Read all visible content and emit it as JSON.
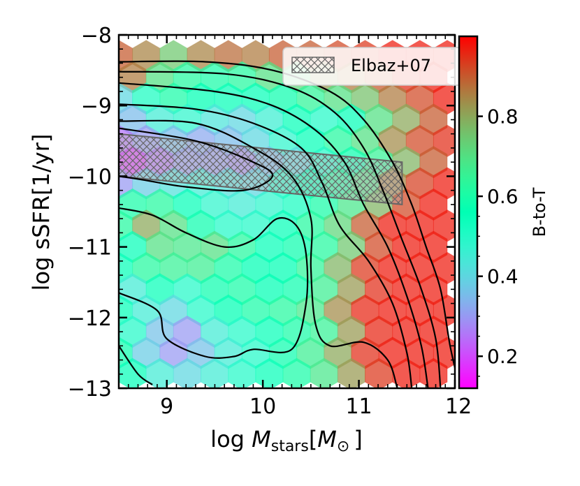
{
  "chart_data": {
    "type": "hexbin",
    "title": "",
    "xlabel": {
      "prefix": "log ",
      "sym": "M",
      "sub": "stars",
      "bracket_open": "[",
      "unit": "M",
      "unit_sub": "⊙",
      "bracket_close": "]"
    },
    "ylabel": "log sSFR[1/yr]",
    "xlim": [
      8.5,
      12
    ],
    "ylim": [
      -13,
      -8
    ],
    "xticks": [
      9,
      10,
      11,
      12
    ],
    "xtick_labels": [
      "9",
      "10",
      "11",
      "12"
    ],
    "yticks": [
      -8,
      -9,
      -10,
      -11,
      -12,
      -13
    ],
    "ytick_labels": [
      "−8",
      "−9",
      "−10",
      "−11",
      "−12",
      "−13"
    ],
    "colorbar": {
      "label": "B-to-T",
      "range": [
        0.12,
        1.0
      ],
      "ticks": [
        0.2,
        0.4,
        0.6,
        0.8
      ],
      "tick_labels": [
        "0.2",
        "0.4",
        "0.6",
        "0.8"
      ],
      "colormap": "rainbow"
    },
    "legend": {
      "location": "top-right",
      "label": "Elbaz+07",
      "style": "hatched"
    },
    "elbaz_band": {
      "x": [
        8.5,
        11.45
      ],
      "lower": [
        -10.0,
        -10.4
      ],
      "upper": [
        -9.4,
        -9.8
      ]
    },
    "hex_grid": {
      "x0": 8.5,
      "x_step": 0.285,
      "y_top": -8.3,
      "y_step": 0.3
    },
    "hex_values": [
      [
        0.9,
        0.85,
        0.75,
        0.85,
        0.88,
        0.86,
        0.9,
        0.9,
        0.92,
        0.94,
        0.97,
        0.97,
        0.97
      ],
      [
        0.86,
        0.7,
        0.62,
        0.6,
        0.62,
        0.7,
        0.72,
        0.82,
        0.86,
        0.9,
        0.95,
        0.97,
        0.97
      ],
      [
        0.4,
        0.52,
        0.6,
        0.56,
        0.55,
        0.55,
        0.58,
        0.64,
        0.7,
        0.76,
        0.86,
        0.92,
        0.97
      ],
      [
        0.35,
        0.45,
        0.48,
        0.43,
        0.4,
        0.46,
        0.55,
        0.5,
        0.55,
        0.7,
        0.8,
        0.9,
        0.95
      ],
      [
        0.25,
        0.3,
        0.35,
        0.32,
        0.35,
        0.4,
        0.48,
        0.55,
        0.62,
        0.7,
        0.84,
        0.92,
        0.95
      ],
      [
        0.18,
        0.25,
        0.3,
        0.3,
        0.28,
        0.35,
        0.4,
        0.5,
        0.58,
        0.65,
        0.78,
        0.9,
        0.95
      ],
      [
        0.3,
        0.38,
        0.42,
        0.45,
        0.42,
        0.4,
        0.5,
        0.56,
        0.62,
        0.7,
        0.85,
        0.93,
        0.97
      ],
      [
        0.6,
        0.62,
        0.55,
        0.48,
        0.45,
        0.48,
        0.52,
        0.6,
        0.68,
        0.78,
        0.92,
        0.97,
        0.97
      ],
      [
        0.62,
        0.8,
        0.7,
        0.58,
        0.5,
        0.5,
        0.55,
        0.62,
        0.72,
        0.9,
        0.97,
        0.97,
        0.97
      ],
      [
        0.55,
        0.7,
        0.68,
        0.7,
        0.62,
        0.55,
        0.58,
        0.62,
        0.75,
        0.92,
        0.97,
        0.97,
        0.97
      ],
      [
        0.55,
        0.62,
        0.65,
        0.66,
        0.6,
        0.56,
        0.56,
        0.64,
        0.78,
        0.94,
        0.97,
        0.97,
        0.97
      ],
      [
        0.45,
        0.55,
        0.5,
        0.58,
        0.6,
        0.56,
        0.58,
        0.66,
        0.82,
        0.95,
        0.97,
        0.97,
        0.97
      ],
      [
        0.55,
        0.45,
        0.4,
        0.5,
        0.56,
        0.6,
        0.62,
        0.68,
        0.84,
        0.96,
        0.97,
        0.97,
        0.97
      ],
      [
        0.5,
        0.36,
        0.3,
        0.45,
        0.5,
        0.55,
        0.6,
        0.65,
        0.82,
        0.96,
        0.97,
        0.97,
        0.97
      ],
      [
        0.58,
        0.38,
        0.3,
        0.36,
        0.45,
        0.5,
        0.58,
        0.66,
        0.8,
        0.95,
        0.97,
        0.97,
        0.97
      ],
      [
        0.55,
        0.45,
        0.4,
        0.45,
        0.5,
        0.55,
        0.6,
        0.68,
        0.82,
        0.94,
        0.97,
        0.97,
        0.97
      ]
    ],
    "hex_mask_xmax": [
      12.0,
      12.0,
      12.0,
      12.0,
      11.95,
      11.9,
      11.95,
      12.0,
      12.0,
      12.0,
      12.0,
      12.0,
      12.0,
      12.0,
      12.0,
      12.0
    ],
    "contours": [
      [
        [
          12.05,
          -13
        ],
        [
          11.95,
          -12.4
        ],
        [
          11.85,
          -11.6
        ],
        [
          11.7,
          -11.0
        ],
        [
          11.55,
          -10.4
        ],
        [
          11.35,
          -9.8
        ],
        [
          11.05,
          -9.2
        ],
        [
          10.7,
          -8.8
        ],
        [
          10.1,
          -8.5
        ],
        [
          9.4,
          -8.38
        ],
        [
          8.5,
          -8.38
        ]
      ],
      [
        [
          11.85,
          -13
        ],
        [
          11.8,
          -12.3
        ],
        [
          11.65,
          -11.6
        ],
        [
          11.45,
          -10.9
        ],
        [
          11.25,
          -10.2
        ],
        [
          11.05,
          -9.6
        ],
        [
          10.75,
          -9.1
        ],
        [
          10.3,
          -8.75
        ],
        [
          9.6,
          -8.55
        ],
        [
          8.5,
          -8.52
        ]
      ],
      [
        [
          11.72,
          -13
        ],
        [
          11.65,
          -12.4
        ],
        [
          11.5,
          -11.7
        ],
        [
          11.3,
          -11.0
        ],
        [
          11.05,
          -10.4
        ],
        [
          10.85,
          -9.8
        ],
        [
          10.55,
          -9.35
        ],
        [
          10.1,
          -9.0
        ],
        [
          9.5,
          -8.8
        ],
        [
          8.5,
          -8.68
        ]
      ],
      [
        [
          11.55,
          -13
        ],
        [
          11.5,
          -12.5
        ],
        [
          11.35,
          -11.8
        ],
        [
          11.1,
          -11.2
        ],
        [
          10.8,
          -10.7
        ],
        [
          10.62,
          -10.1
        ],
        [
          10.4,
          -9.6
        ],
        [
          9.9,
          -9.25
        ],
        [
          9.3,
          -9.05
        ],
        [
          8.5,
          -8.98
        ]
      ],
      [
        [
          11.4,
          -13
        ],
        [
          11.3,
          -12.6
        ],
        [
          11.05,
          -12.35
        ],
        [
          10.7,
          -12.4
        ],
        [
          10.55,
          -12.1
        ],
        [
          10.5,
          -11.3
        ],
        [
          10.5,
          -10.6
        ],
        [
          10.3,
          -10.0
        ],
        [
          9.9,
          -9.6
        ],
        [
          9.3,
          -9.25
        ],
        [
          8.5,
          -9.22
        ]
      ],
      [
        [
          8.5,
          -9.32
        ],
        [
          9.3,
          -9.5
        ],
        [
          9.9,
          -9.8
        ],
        [
          10.1,
          -10.0
        ],
        [
          9.8,
          -10.2
        ],
        [
          9.2,
          -10.15
        ],
        [
          8.75,
          -10.05
        ],
        [
          8.5,
          -10.0
        ]
      ],
      [
        [
          8.5,
          -12.4
        ],
        [
          8.7,
          -12.8
        ],
        [
          8.85,
          -12.95
        ]
      ],
      [
        [
          8.5,
          -11.65
        ],
        [
          8.9,
          -11.9
        ],
        [
          9.0,
          -12.3
        ],
        [
          9.4,
          -12.55
        ],
        [
          9.7,
          -12.55
        ],
        [
          9.9,
          -12.45
        ],
        [
          10.3,
          -12.45
        ],
        [
          10.45,
          -11.8
        ],
        [
          10.45,
          -11.1
        ],
        [
          10.35,
          -10.7
        ],
        [
          10.15,
          -10.6
        ],
        [
          9.9,
          -10.9
        ],
        [
          9.6,
          -11.0
        ],
        [
          9.2,
          -10.8
        ],
        [
          8.85,
          -10.55
        ],
        [
          8.5,
          -10.45
        ]
      ]
    ]
  }
}
